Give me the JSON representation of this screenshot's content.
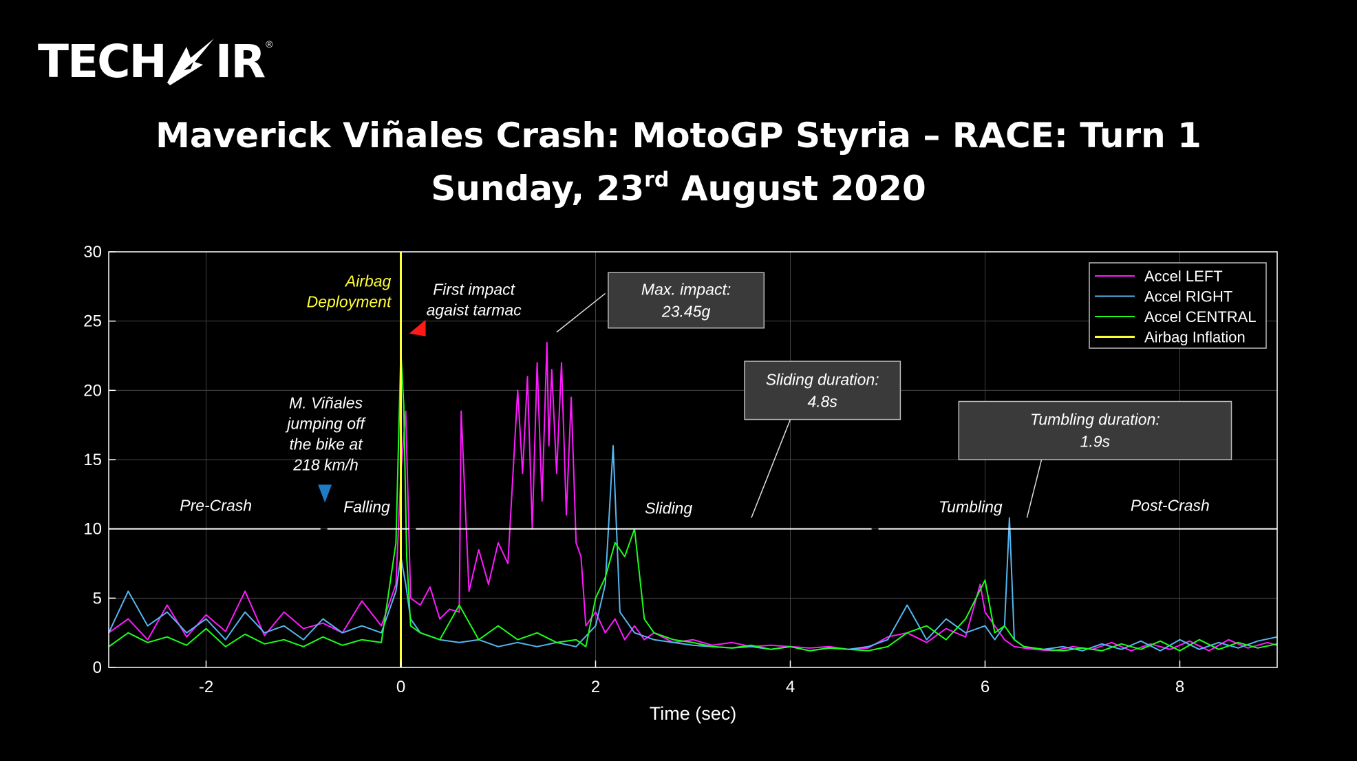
{
  "logo": {
    "text_left": "TECH",
    "text_right": "IR",
    "registered": "®"
  },
  "title": {
    "line1": "Maverick Viñales Crash: MotoGP Styria – RACE: Turn 1",
    "line2_prefix": "Sunday, 23",
    "line2_sup": "rd",
    "line2_suffix": " August 2020"
  },
  "colors": {
    "background": "#000000",
    "accel_left": "#ff1aff",
    "accel_right": "#55b6f0",
    "accel_central": "#1aff1a",
    "airbag": "#ffff33",
    "axes": "#ffffff",
    "grid": "#444444",
    "callout_bg": "#3a3a3a"
  },
  "chart_data": {
    "type": "line",
    "xlabel": "Time (sec)",
    "ylabel": "",
    "xlim": [
      -3,
      9
    ],
    "ylim": [
      0,
      30
    ],
    "x_ticks": [
      -2,
      0,
      2,
      4,
      6,
      8
    ],
    "y_ticks": [
      0,
      5,
      10,
      15,
      20,
      25,
      30
    ],
    "grid": true,
    "legend_position": "top-right",
    "legend": [
      "Accel LEFT",
      "Accel RIGHT",
      "Accel CENTRAL",
      "Airbag Inflation"
    ],
    "series": [
      {
        "name": "Accel LEFT",
        "color_key": "accel_left",
        "x": [
          -3.0,
          -2.8,
          -2.6,
          -2.4,
          -2.2,
          -2.0,
          -1.8,
          -1.6,
          -1.4,
          -1.2,
          -1.0,
          -0.8,
          -0.6,
          -0.4,
          -0.2,
          -0.05,
          0.0,
          0.05,
          0.1,
          0.2,
          0.3,
          0.4,
          0.5,
          0.6,
          0.62,
          0.7,
          0.8,
          0.9,
          1.0,
          1.1,
          1.2,
          1.25,
          1.3,
          1.35,
          1.4,
          1.45,
          1.5,
          1.52,
          1.55,
          1.6,
          1.65,
          1.7,
          1.75,
          1.8,
          1.85,
          1.9,
          2.0,
          2.1,
          2.2,
          2.3,
          2.4,
          2.5,
          2.6,
          2.8,
          3.0,
          3.2,
          3.4,
          3.6,
          3.8,
          4.0,
          4.2,
          4.4,
          4.6,
          4.8,
          5.0,
          5.2,
          5.4,
          5.6,
          5.8,
          5.95,
          6.0,
          6.1,
          6.2,
          6.3,
          6.5,
          6.7,
          6.9,
          7.1,
          7.3,
          7.5,
          7.7,
          7.9,
          8.1,
          8.3,
          8.5,
          8.7,
          8.9,
          9.0
        ],
        "y": [
          2.5,
          3.5,
          2.0,
          4.5,
          2.2,
          3.8,
          2.6,
          5.5,
          2.3,
          4.0,
          2.8,
          3.2,
          2.5,
          4.8,
          3.0,
          6.0,
          14.0,
          18.5,
          5.0,
          4.5,
          5.8,
          3.5,
          4.2,
          4.0,
          18.5,
          5.5,
          8.5,
          6.0,
          9.0,
          7.5,
          20.0,
          14.0,
          21.0,
          10.0,
          22.0,
          12.0,
          23.45,
          16.0,
          21.5,
          14.0,
          22.0,
          11.0,
          19.5,
          9.0,
          8.0,
          3.0,
          4.0,
          2.5,
          3.5,
          2.0,
          3.0,
          2.0,
          2.5,
          1.8,
          2.0,
          1.6,
          1.8,
          1.5,
          1.6,
          1.5,
          1.4,
          1.5,
          1.3,
          1.4,
          2.2,
          2.5,
          1.8,
          2.8,
          2.2,
          6.0,
          4.0,
          3.0,
          2.0,
          1.5,
          1.3,
          1.2,
          1.5,
          1.3,
          1.8,
          1.2,
          1.7,
          1.3,
          1.9,
          1.2,
          2.0,
          1.4,
          1.8,
          1.6
        ]
      },
      {
        "name": "Accel RIGHT",
        "color_key": "accel_right",
        "x": [
          -3.0,
          -2.8,
          -2.6,
          -2.4,
          -2.2,
          -2.0,
          -1.8,
          -1.6,
          -1.4,
          -1.2,
          -1.0,
          -0.8,
          -0.6,
          -0.4,
          -0.2,
          -0.05,
          0.0,
          0.05,
          0.1,
          0.2,
          0.4,
          0.6,
          0.8,
          1.0,
          1.2,
          1.4,
          1.6,
          1.8,
          2.0,
          2.1,
          2.18,
          2.25,
          2.4,
          2.6,
          2.8,
          3.0,
          3.2,
          3.4,
          3.6,
          3.8,
          4.0,
          4.2,
          4.4,
          4.6,
          4.8,
          5.0,
          5.2,
          5.4,
          5.6,
          5.8,
          6.0,
          6.1,
          6.2,
          6.25,
          6.3,
          6.4,
          6.6,
          6.8,
          7.0,
          7.2,
          7.4,
          7.6,
          7.8,
          8.0,
          8.2,
          8.4,
          8.6,
          8.8,
          9.0
        ],
        "y": [
          2.5,
          5.5,
          3.0,
          4.0,
          2.5,
          3.5,
          2.0,
          4.0,
          2.5,
          3.0,
          2.0,
          3.5,
          2.5,
          3.0,
          2.5,
          5.5,
          8.0,
          6.0,
          3.5,
          2.5,
          2.0,
          1.8,
          2.0,
          1.5,
          1.8,
          1.5,
          1.8,
          1.5,
          3.0,
          6.0,
          16.0,
          4.0,
          2.5,
          2.0,
          1.8,
          1.6,
          1.5,
          1.4,
          1.5,
          1.3,
          1.5,
          1.2,
          1.4,
          1.3,
          1.5,
          2.0,
          4.5,
          2.0,
          3.5,
          2.5,
          3.0,
          2.0,
          3.0,
          10.8,
          2.0,
          1.5,
          1.3,
          1.5,
          1.2,
          1.7,
          1.3,
          1.9,
          1.2,
          2.0,
          1.3,
          1.8,
          1.4,
          1.9,
          2.2
        ]
      },
      {
        "name": "Accel CENTRAL",
        "color_key": "accel_central",
        "x": [
          -3.0,
          -2.8,
          -2.6,
          -2.4,
          -2.2,
          -2.0,
          -1.8,
          -1.6,
          -1.4,
          -1.2,
          -1.0,
          -0.8,
          -0.6,
          -0.4,
          -0.2,
          -0.05,
          0.0,
          0.03,
          0.06,
          0.1,
          0.2,
          0.4,
          0.6,
          0.8,
          1.0,
          1.2,
          1.4,
          1.6,
          1.8,
          1.9,
          2.0,
          2.1,
          2.2,
          2.3,
          2.4,
          2.5,
          2.6,
          2.8,
          3.0,
          3.2,
          3.4,
          3.6,
          3.8,
          4.0,
          4.2,
          4.4,
          4.6,
          4.8,
          5.0,
          5.2,
          5.4,
          5.6,
          5.8,
          6.0,
          6.1,
          6.2,
          6.3,
          6.4,
          6.6,
          6.8,
          7.0,
          7.2,
          7.4,
          7.6,
          7.8,
          8.0,
          8.2,
          8.4,
          8.6,
          8.8,
          9.0
        ],
        "y": [
          1.5,
          2.5,
          1.8,
          2.2,
          1.6,
          2.8,
          1.5,
          2.4,
          1.7,
          2.0,
          1.5,
          2.2,
          1.6,
          2.0,
          1.8,
          9.0,
          22.8,
          19.0,
          8.0,
          3.0,
          2.5,
          2.0,
          4.5,
          2.0,
          3.0,
          2.0,
          2.5,
          1.8,
          2.0,
          1.5,
          5.0,
          6.5,
          9.0,
          8.0,
          10.0,
          3.5,
          2.5,
          2.0,
          1.8,
          1.5,
          1.4,
          1.6,
          1.3,
          1.5,
          1.2,
          1.4,
          1.3,
          1.2,
          1.5,
          2.5,
          3.0,
          2.0,
          3.5,
          6.3,
          2.5,
          3.0,
          2.0,
          1.5,
          1.3,
          1.2,
          1.4,
          1.2,
          1.7,
          1.3,
          1.9,
          1.2,
          2.0,
          1.3,
          1.8,
          1.4,
          1.7
        ]
      }
    ],
    "markers": [
      {
        "name": "Airbag Inflation",
        "type": "vline",
        "x": 0
      }
    ],
    "phase_line": {
      "y": 10,
      "gaps_x": [
        -0.79,
        0.12,
        4.87
      ]
    },
    "phases": [
      {
        "label": "Pre-Crash",
        "x": -1.9,
        "y": 11.3
      },
      {
        "label": "Falling",
        "x": -0.35,
        "y": 11.2
      },
      {
        "label": "Sliding",
        "x": 2.75,
        "y": 11.1
      },
      {
        "label": "Tumbling",
        "x": 5.85,
        "y": 11.2
      },
      {
        "label": "Post-Crash",
        "x": 7.9,
        "y": 11.3
      }
    ],
    "annotations": [
      {
        "lines": [
          "Airbag",
          "Deployment"
        ],
        "color_key": "airbag",
        "anchor_x": -0.1,
        "anchor_y": 27.5
      },
      {
        "lines": [
          "First impact",
          "agaist tarmac"
        ],
        "color_key": "axes",
        "anchor_x": 0.75,
        "anchor_y": 26.9
      },
      {
        "lines": [
          "M. Viñales",
          "jumping off",
          "the bike at",
          "218 km/h"
        ],
        "color_key": "axes",
        "anchor_x": -0.77,
        "anchor_y": 18.7
      }
    ],
    "arrows": [
      {
        "name": "jump-arrow",
        "x": -0.78,
        "y": 12.5,
        "color": "#1e7bc6",
        "direction": "down"
      },
      {
        "name": "impact-arrow",
        "x": 0.17,
        "y": 24.5,
        "color": "#ff1a1a",
        "direction": "left"
      }
    ],
    "callouts": [
      {
        "lines": [
          "Max. impact:",
          "23.45g"
        ],
        "box_x": [
          2.13,
          3.73
        ],
        "box_y": [
          24.5,
          28.5
        ],
        "leader_from": [
          2.1,
          27.0
        ],
        "leader_to": [
          1.6,
          24.2
        ]
      },
      {
        "lines": [
          "Sliding duration:",
          "4.8s"
        ],
        "box_x": [
          3.53,
          5.13
        ],
        "box_y": [
          17.9,
          22.1
        ],
        "leader_from": [
          4.0,
          17.9
        ],
        "leader_to": [
          3.6,
          10.8
        ]
      },
      {
        "lines": [
          "Tumbling duration:",
          "1.9s"
        ],
        "box_x": [
          5.73,
          8.53
        ],
        "box_y": [
          15.0,
          19.2
        ],
        "leader_from": [
          6.58,
          15.0
        ],
        "leader_to": [
          6.43,
          10.8
        ]
      }
    ]
  }
}
